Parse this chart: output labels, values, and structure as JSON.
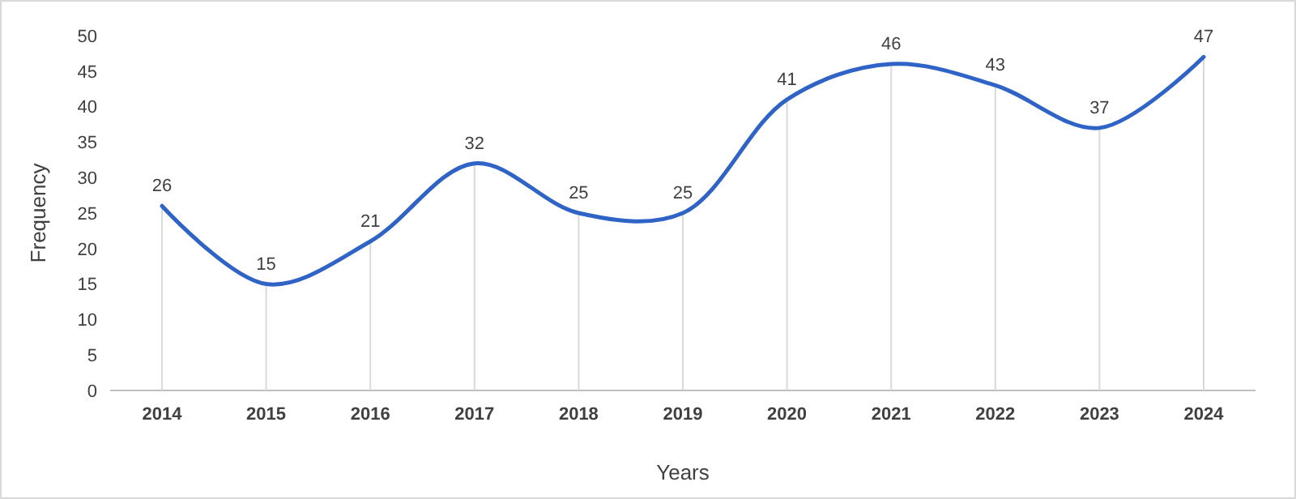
{
  "chart_data": {
    "type": "line",
    "xlabel": "Years",
    "ylabel": "Frequency",
    "categories": [
      "2014",
      "2015",
      "2016",
      "2017",
      "2018",
      "2019",
      "2020",
      "2021",
      "2022",
      "2023",
      "2024"
    ],
    "values": [
      26,
      15,
      21,
      32,
      25,
      25,
      41,
      46,
      43,
      37,
      47
    ],
    "color": "#2f63c6",
    "ylim": [
      0,
      50
    ],
    "yticks": [
      0,
      5,
      10,
      15,
      20,
      25,
      30,
      35,
      40,
      45,
      50
    ],
    "data_labels": true,
    "grid": "x",
    "marker": "none",
    "line_style": "solid"
  }
}
